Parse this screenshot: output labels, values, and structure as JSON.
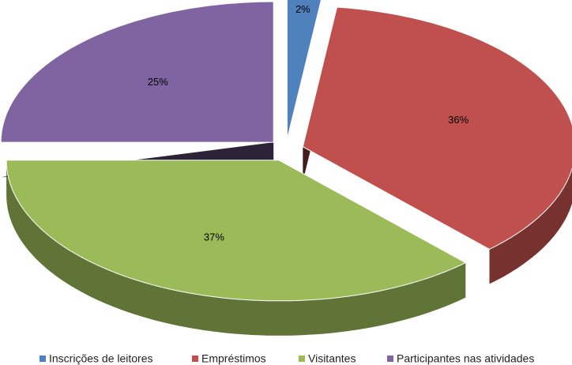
{
  "chart_data": {
    "type": "pie3d",
    "categories": [
      "Inscrições de leitores",
      "Empréstimos",
      "Visitantes",
      "Participantes nas atividades"
    ],
    "values": [
      2,
      36,
      37,
      25
    ],
    "value_labels": [
      "2%",
      "36%",
      "37%",
      "25%"
    ],
    "colors": [
      "#4f81bd",
      "#c0504d",
      "#9bbb59",
      "#8064a2"
    ],
    "legend": "bottom"
  }
}
